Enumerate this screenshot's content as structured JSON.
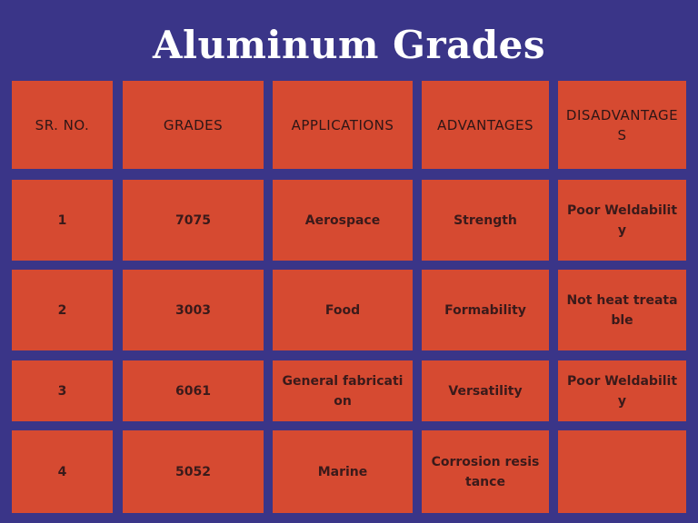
{
  "title": "Aluminum Grades",
  "table": {
    "headers": [
      "SR. NO.",
      "GRADES",
      "APPLICATIONS",
      "ADVANTAGES",
      "DISADVANTAGES"
    ],
    "rows": [
      [
        "1",
        "7075",
        "Aerospace",
        "Strength",
        "Poor Weldability"
      ],
      [
        "2",
        "3003",
        "Food",
        "Formability",
        "Not heat treatable"
      ],
      [
        "3",
        "6061",
        "General fabrication",
        "Versatility",
        "Poor Weldability"
      ],
      [
        "4",
        "5052",
        "Marine",
        "Corrosion resistance",
        ""
      ]
    ]
  },
  "colors": {
    "background": "#3a3588",
    "cell": "#d64a31",
    "title_text": "#ffffff",
    "cell_text": "#3a1a1a"
  }
}
